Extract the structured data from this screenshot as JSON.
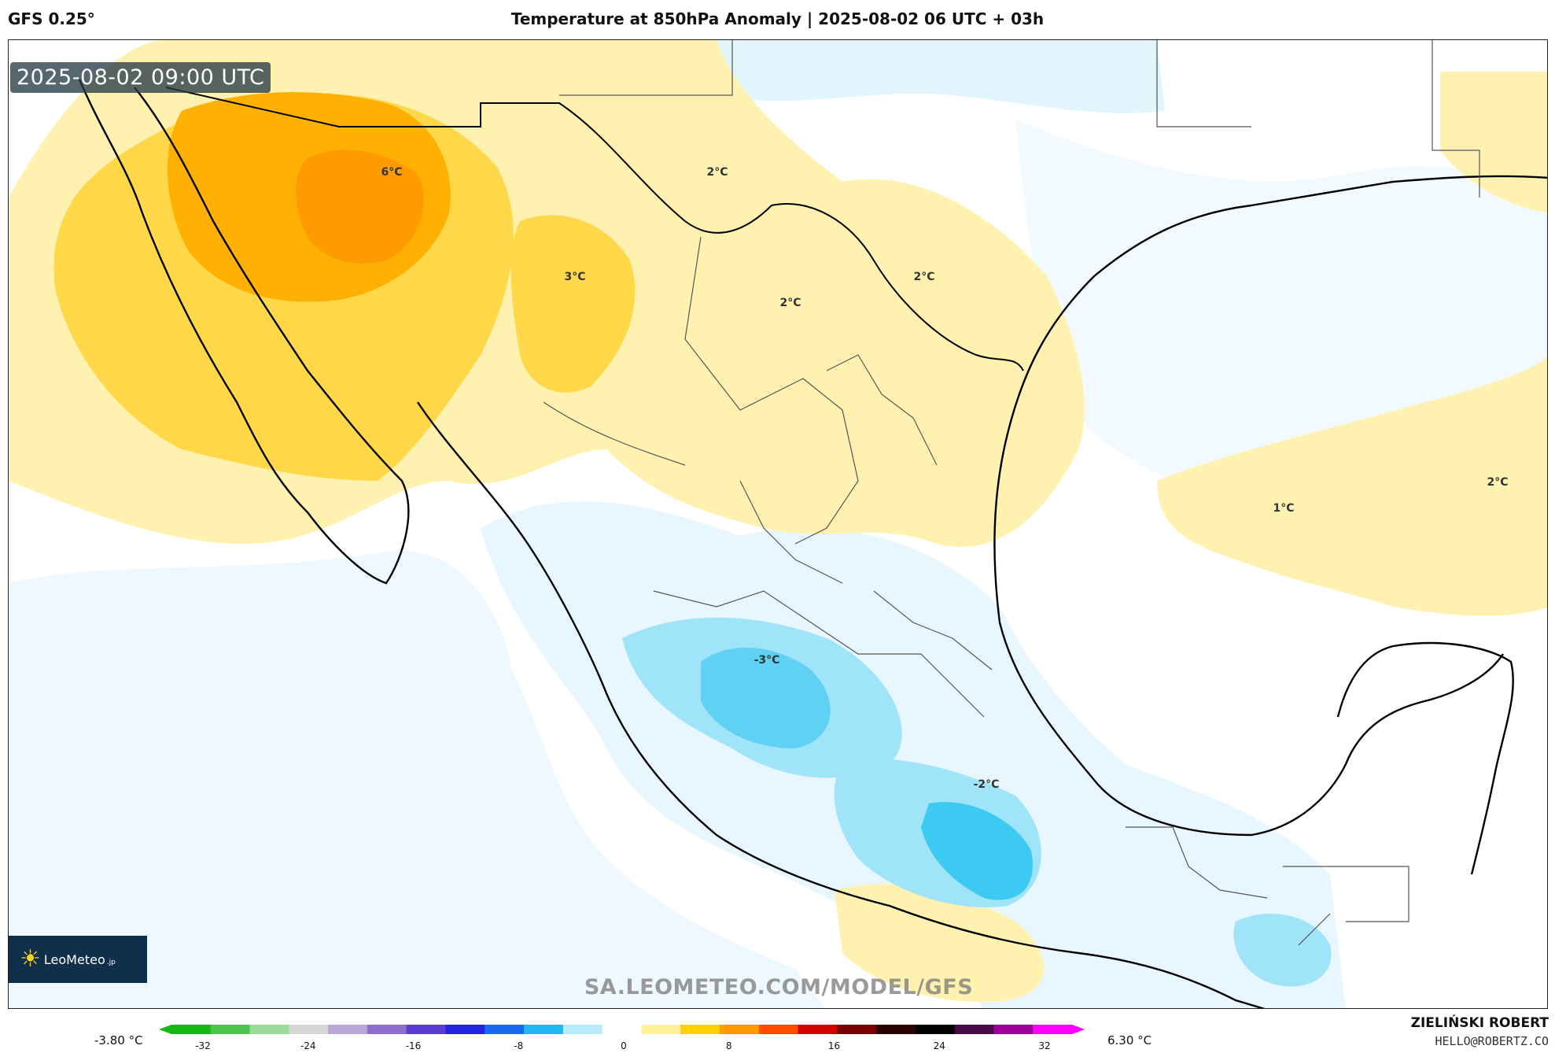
{
  "header": {
    "model": "GFS 0.25°",
    "title": "Temperature at 850hPa Anomaly | 2025-08-02 06 UTC + 03h"
  },
  "map": {
    "valid_time": "2025-08-02 09:00 UTC",
    "labels": [
      {
        "text": "6°C",
        "value": 6
      },
      {
        "text": "3°C",
        "value": 3
      },
      {
        "text": "2°C",
        "value": 2
      },
      {
        "text": "2°C",
        "value": 2
      },
      {
        "text": "2°C",
        "value": 2
      },
      {
        "text": "1°C",
        "value": 1
      },
      {
        "text": "2°C",
        "value": 2
      },
      {
        "text": "-3°C",
        "value": -3
      },
      {
        "text": "-2°C",
        "value": -2
      }
    ],
    "watermark": "SA.LEOMETEO.COM/MODEL/GFS"
  },
  "logo": {
    "text": "LeoMeteo",
    "suffix": ".jp",
    "icon": "sun-icon"
  },
  "colorbar": {
    "min_label": "-3.80 °C",
    "max_label": "6.30 °C",
    "ticks": [
      "-32",
      "-24",
      "-16",
      "-8",
      "0",
      "8",
      "16",
      "24",
      "32"
    ],
    "colors": [
      "#16b816",
      "#4ec44e",
      "#9bdc9b",
      "#d6d6d6",
      "#b9a6d8",
      "#8e6fd0",
      "#5a3ccf",
      "#2323e0",
      "#1a67f0",
      "#21b6f2",
      "#b6ecfb",
      "#ffffff",
      "#fff09a",
      "#ffd200",
      "#ff9a00",
      "#ff4d00",
      "#d40000",
      "#7a0000",
      "#2a0000",
      "#000000",
      "#4a0a4a",
      "#9b009b",
      "#ff00ff"
    ]
  },
  "credit": {
    "name": "ZIELIŃSKI ROBERT",
    "email": "HELLO@ROBERTZ.CO"
  }
}
